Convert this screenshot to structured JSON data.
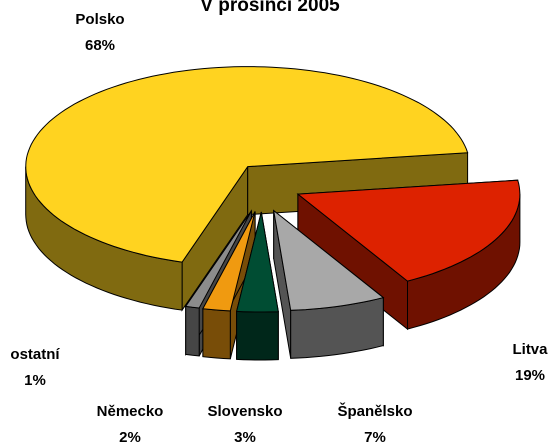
{
  "chart_data": {
    "type": "pie3d",
    "title": "V prosinci 2005",
    "categories": [
      "Litva",
      "Španělsko",
      "Slovensko",
      "Německo",
      "ostatní",
      "Polsko"
    ],
    "values": [
      19,
      7,
      3,
      2,
      1,
      68
    ],
    "value_labels": [
      "19%",
      "7%",
      "3%",
      "2%",
      "1%",
      "68%"
    ],
    "colors": [
      "#DD2200",
      "#A8A8A8",
      "#004D33",
      "#F09A10",
      "#8C8C8C",
      "#FFD320"
    ],
    "exploded": true
  }
}
